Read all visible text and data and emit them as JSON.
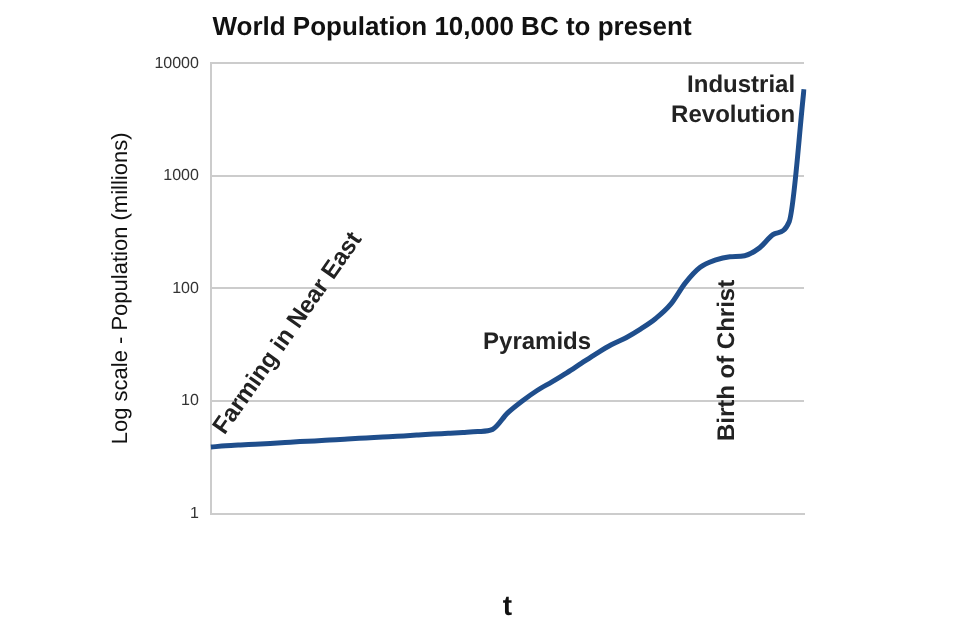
{
  "chart_data": {
    "type": "line",
    "title": "World Population 10,000 BC to present",
    "xlabel": "t",
    "ylabel": "Log scale - Population (millions)",
    "categories": [
      null,
      null,
      null,
      null,
      null,
      null,
      null,
      null,
      null,
      null,
      null,
      null,
      null,
      null,
      null,
      null,
      null,
      null,
      null,
      null,
      null,
      null,
      null,
      null,
      null,
      null,
      null,
      null,
      null,
      null,
      null,
      null,
      null,
      null,
      null,
      null,
      null,
      null,
      null,
      null,
      null
    ],
    "series": [
      {
        "color": "#1f4e8c",
        "values": [
          3.9,
          4.0,
          4.07,
          4.13,
          4.2,
          4.28,
          4.36,
          4.42,
          4.5,
          4.58,
          4.66,
          4.73,
          4.82,
          4.9,
          4.99,
          5.08,
          5.16,
          5.25,
          5.35,
          5.6,
          7.8,
          10,
          12.4,
          14.8,
          17.8,
          21.7,
          26.4,
          31.6,
          36.5,
          43.7,
          54,
          72,
          112,
          154,
          178,
          191,
          195,
          229,
          305,
          391,
          5860
        ]
      }
    ],
    "log": "y",
    "ylim": [
      1,
      10000
    ],
    "yticks": [
      1,
      10,
      100,
      1000,
      10000
    ],
    "grid": "y",
    "legend": false,
    "marker": "none",
    "line_style": "solid",
    "annotations": [
      "Farming in Near East",
      "Pyramids",
      "Birth of Christ",
      "Industrial Revolution"
    ]
  }
}
